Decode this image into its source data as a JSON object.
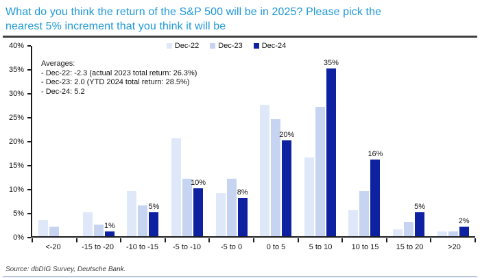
{
  "page": {
    "title_lines": [
      "What do you think the return of the S&P 500 will be in 2025? Please pick the",
      "nearest 5% increment that you think it will be"
    ],
    "title_color": "#1e98d5",
    "source": "Source: dbDIG Survey, Deutsche Bank."
  },
  "annotation": {
    "title": "Averages:",
    "lines": [
      "- Dec-22: -2.3 (actual 2023 total return: 26.3%)",
      "- Dec-23: 2.0 (YTD 2024 total return: 28.5%)",
      "- Dec-24: 5.2"
    ]
  },
  "chart_data": {
    "type": "bar",
    "title": "What do you think the return of the S&P 500 will be in 2025? Please pick the nearest 5% increment that you think it will be",
    "categories": [
      "<-20",
      "-15 to -20",
      "-10 to -15",
      "-5 to -10",
      "-5 to 0",
      "0 to 5",
      "5 to 10",
      "10 to 15",
      "15 to 20",
      ">20"
    ],
    "series": [
      {
        "name": "Dec-22",
        "color": "#dfe8f8",
        "values": [
          3.5,
          5,
          9.5,
          20.5,
          9,
          27.5,
          16.5,
          5.5,
          1.5,
          1
        ],
        "labels": [
          "",
          "",
          "",
          "",
          "",
          "",
          "",
          "",
          "",
          ""
        ]
      },
      {
        "name": "Dec-23",
        "color": "#c6d4f1",
        "values": [
          2,
          2.5,
          6.5,
          12,
          12,
          24.5,
          27,
          9.5,
          3,
          1
        ],
        "labels": [
          "",
          "",
          "",
          "",
          "",
          "",
          "",
          "",
          "",
          ""
        ]
      },
      {
        "name": "Dec-24",
        "color": "#0d21a1",
        "values": [
          0,
          1,
          5,
          10,
          8,
          20,
          35,
          16,
          5,
          2
        ],
        "labels": [
          "",
          "1%",
          "5%",
          "10%",
          "8%",
          "20%",
          "35%",
          "16%",
          "5%",
          "2%"
        ]
      }
    ],
    "xlabel": "",
    "ylabel": "",
    "ylim": [
      0,
      40
    ],
    "ytick_step": 5,
    "ytick_labels": [
      "0%",
      "5%",
      "10%",
      "15%",
      "20%",
      "25%",
      "30%",
      "35%",
      "40%"
    ],
    "legend_position": "top-center",
    "grid": false
  }
}
